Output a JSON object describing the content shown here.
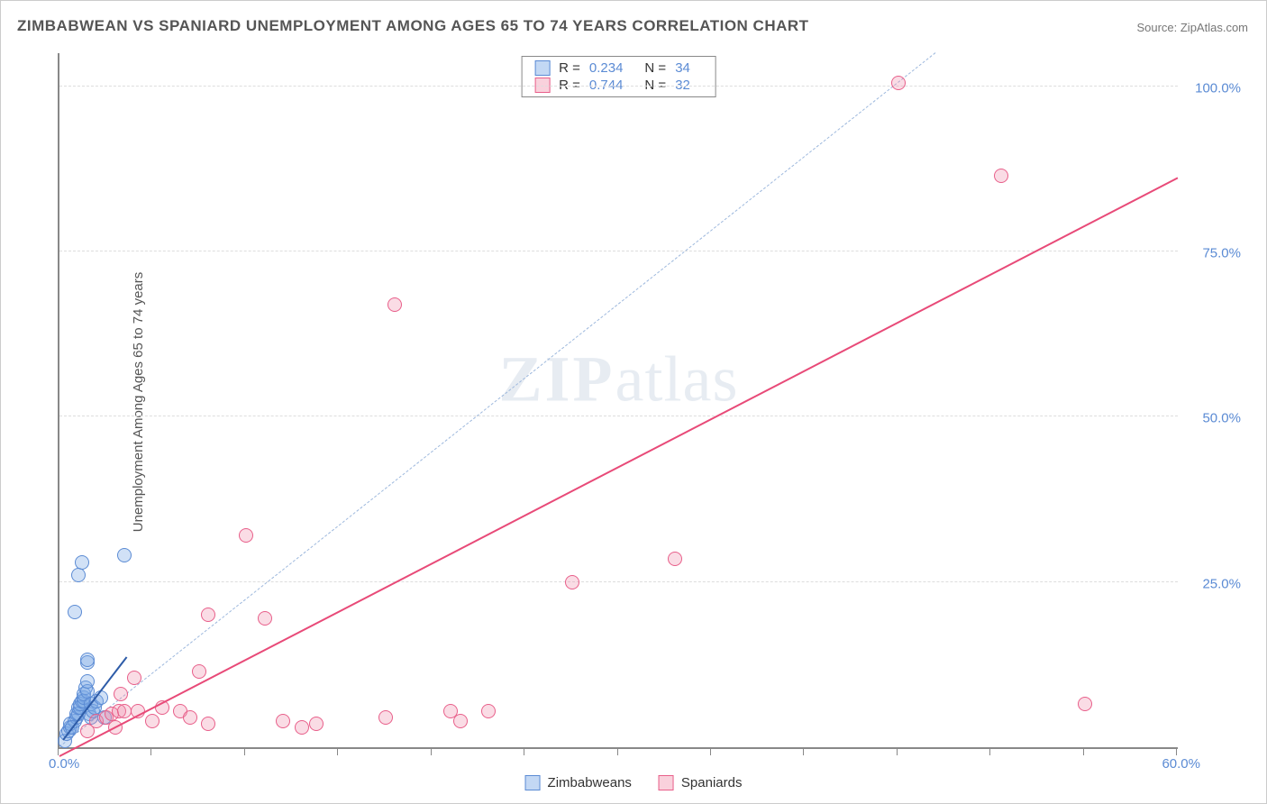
{
  "title": "ZIMBABWEAN VS SPANIARD UNEMPLOYMENT AMONG AGES 65 TO 74 YEARS CORRELATION CHART",
  "source": "Source: ZipAtlas.com",
  "y_axis_label": "Unemployment Among Ages 65 to 74 years",
  "watermark_a": "ZIP",
  "watermark_b": "atlas",
  "chart": {
    "type": "scatter",
    "xlim": [
      0,
      60
    ],
    "ylim": [
      0,
      105
    ],
    "y_gridlines": [
      25,
      50,
      75,
      100
    ],
    "y_tick_labels": [
      "25.0%",
      "50.0%",
      "75.0%",
      "100.0%"
    ],
    "x_ticks": [
      0,
      5,
      10,
      15,
      20,
      25,
      30,
      35,
      40,
      45,
      50,
      55,
      60
    ],
    "x_origin_label": "0.0%",
    "x_end_label": "60.0%",
    "background": "#ffffff",
    "grid_color": "#dddddd",
    "axis_color": "#888888",
    "marker_radius": 8,
    "marker_stroke": 1.5,
    "series": [
      {
        "name": "Zimbabweans",
        "color_fill": "rgba(122,168,230,0.35)",
        "color_stroke": "#5b8bd4",
        "trend_color": "#2e5ca8",
        "trend_style": "solid",
        "points": [
          [
            0.3,
            1.0
          ],
          [
            0.4,
            2.0
          ],
          [
            0.5,
            2.5
          ],
          [
            0.6,
            3.0
          ],
          [
            0.6,
            3.5
          ],
          [
            0.8,
            4.0
          ],
          [
            0.9,
            4.5
          ],
          [
            0.9,
            5.0
          ],
          [
            1.0,
            5.0
          ],
          [
            1.0,
            6.0
          ],
          [
            1.1,
            6.0
          ],
          [
            1.1,
            6.5
          ],
          [
            1.2,
            7.0
          ],
          [
            1.3,
            7.0
          ],
          [
            1.3,
            7.5
          ],
          [
            1.3,
            8.0
          ],
          [
            1.4,
            9.0
          ],
          [
            1.5,
            8.5
          ],
          [
            1.5,
            10.0
          ],
          [
            1.5,
            12.8
          ],
          [
            1.5,
            13.2
          ],
          [
            1.6,
            5.0
          ],
          [
            1.7,
            6.5
          ],
          [
            1.7,
            4.5
          ],
          [
            1.8,
            5.5
          ],
          [
            1.9,
            6.0
          ],
          [
            2.0,
            7.0
          ],
          [
            2.2,
            7.5
          ],
          [
            0.8,
            20.5
          ],
          [
            1.0,
            26.0
          ],
          [
            1.2,
            28.0
          ],
          [
            3.5,
            29.0
          ],
          [
            0.7,
            3.0
          ],
          [
            2.4,
            4.5
          ]
        ],
        "trend": {
          "x1": 0.2,
          "y1": 1.0,
          "x2": 3.6,
          "y2": 13.5
        }
      },
      {
        "name": "Spaniards",
        "color_fill": "rgba(240,140,168,0.30)",
        "color_stroke": "#e85f8a",
        "trend_color": "#e84a78",
        "trend_style": "solid",
        "points": [
          [
            1.5,
            2.5
          ],
          [
            2.0,
            4.0
          ],
          [
            2.5,
            4.5
          ],
          [
            2.8,
            5.0
          ],
          [
            3.0,
            3.0
          ],
          [
            3.2,
            5.5
          ],
          [
            3.3,
            8.0
          ],
          [
            3.5,
            5.5
          ],
          [
            4.0,
            10.5
          ],
          [
            4.2,
            5.5
          ],
          [
            5.0,
            4.0
          ],
          [
            5.5,
            6.0
          ],
          [
            6.5,
            5.5
          ],
          [
            7.0,
            4.5
          ],
          [
            7.5,
            11.5
          ],
          [
            8.0,
            3.5
          ],
          [
            8.0,
            20.0
          ],
          [
            10.0,
            32.0
          ],
          [
            11.0,
            19.5
          ],
          [
            12.0,
            4.0
          ],
          [
            13.0,
            3.0
          ],
          [
            13.8,
            3.5
          ],
          [
            17.5,
            4.5
          ],
          [
            21.0,
            5.5
          ],
          [
            21.5,
            4.0
          ],
          [
            23.0,
            5.5
          ],
          [
            27.5,
            25.0
          ],
          [
            33.0,
            28.5
          ],
          [
            18.0,
            67.0
          ],
          [
            45.0,
            100.5
          ],
          [
            50.5,
            86.5
          ],
          [
            55.0,
            6.5
          ]
        ],
        "trend": {
          "x1": 0.0,
          "y1": -1.5,
          "x2": 60.0,
          "y2": 86.0
        }
      }
    ],
    "identity_line": {
      "color": "#9db8dd",
      "style": "dashed",
      "x1": 0,
      "y1": 0,
      "x2": 47,
      "y2": 105
    }
  },
  "stats": {
    "rows": [
      {
        "swatch_fill": "rgba(122,168,230,0.45)",
        "swatch_stroke": "#5b8bd4",
        "r_label": "R =",
        "r_value": "0.234",
        "n_label": "N =",
        "n_value": "34"
      },
      {
        "swatch_fill": "rgba(240,140,168,0.40)",
        "swatch_stroke": "#e85f8a",
        "r_label": "R =",
        "r_value": "0.744",
        "n_label": "N =",
        "n_value": "32"
      }
    ]
  },
  "legend": {
    "items": [
      {
        "swatch_fill": "rgba(122,168,230,0.45)",
        "swatch_stroke": "#5b8bd4",
        "label": "Zimbabweans"
      },
      {
        "swatch_fill": "rgba(240,140,168,0.40)",
        "swatch_stroke": "#e85f8a",
        "label": "Spaniards"
      }
    ]
  }
}
